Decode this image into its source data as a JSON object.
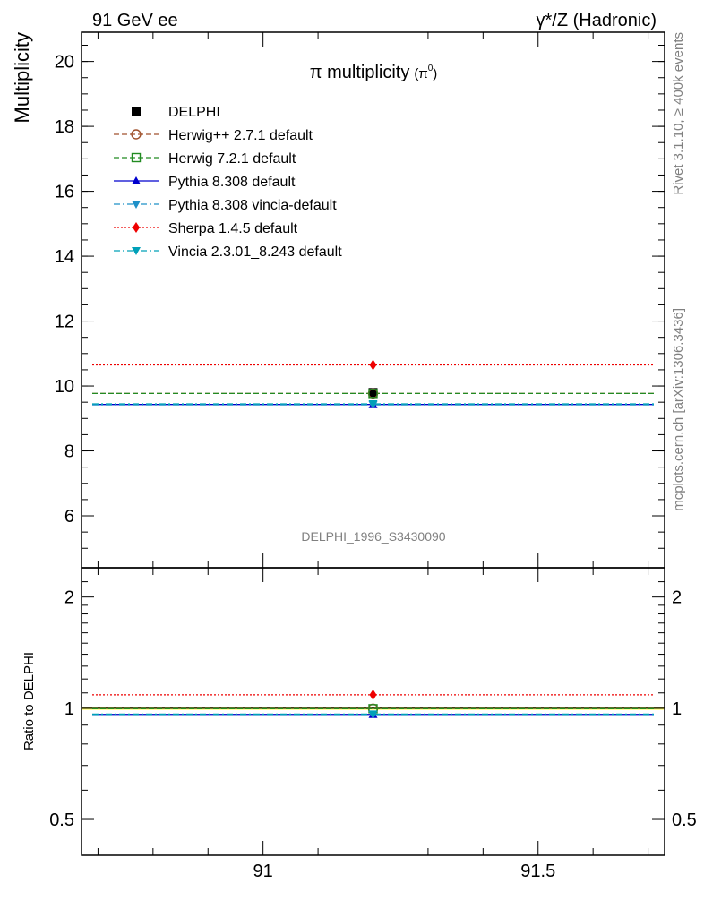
{
  "header": {
    "left": "91 GeV ee",
    "right": "γ*/Z (Hadronic)"
  },
  "side_text": {
    "rivet": "Rivet 3.1.10, ≥ 400k events",
    "mcplots": "mcplots.cern.ch [arXiv:1306.3436]"
  },
  "chart_data": [
    {
      "type": "scatter",
      "title": "π multiplicity (π⁰)",
      "title_main": "π multiplicity",
      "title_sub": "(π",
      "title_sup": "0",
      "title_close": ")",
      "ylabel": "Multiplicity",
      "watermark": "DELPHI_1996_S3430090",
      "xlim": [
        90.67,
        91.73
      ],
      "ylim": [
        4.4,
        20.9
      ],
      "yticks": [
        6,
        8,
        10,
        12,
        14,
        16,
        18,
        20
      ],
      "ytick_labels": [
        "6",
        "8",
        "10",
        "12",
        "14",
        "16",
        "18",
        "20"
      ],
      "xticks": [
        91,
        91.5
      ],
      "legend_position": "top-left",
      "series": [
        {
          "name": "DELPHI",
          "x": [
            91.2
          ],
          "y": [
            9.8
          ],
          "yerr": [
            0.1
          ],
          "color": "#000000",
          "style": "data",
          "marker": "square-filled"
        },
        {
          "name": "Herwig++ 2.7.1 default",
          "x": [
            91.2
          ],
          "y": [
            9.77
          ],
          "color": "#a0522d",
          "style": "dashed",
          "marker": "circle-open"
        },
        {
          "name": "Herwig 7.2.1 default",
          "x": [
            91.2
          ],
          "y": [
            9.77
          ],
          "color": "#228b22",
          "style": "dashed",
          "marker": "square-open"
        },
        {
          "name": "Pythia 8.308 default",
          "x": [
            91.2
          ],
          "y": [
            9.43
          ],
          "color": "#0000cd",
          "style": "solid",
          "marker": "triangle-up"
        },
        {
          "name": "Pythia 8.308 vincia-default",
          "x": [
            91.2
          ],
          "y": [
            9.42
          ],
          "color": "#1e90c8",
          "style": "dashdot",
          "marker": "triangle-down"
        },
        {
          "name": "Sherpa 1.4.5 default",
          "x": [
            91.2
          ],
          "y": [
            10.65
          ],
          "color": "#ee0000",
          "style": "dotted",
          "marker": "diamond"
        },
        {
          "name": "Vincia 2.3.01_8.243 default",
          "x": [
            91.2
          ],
          "y": [
            9.45
          ],
          "color": "#00a0b8",
          "style": "dashdot",
          "marker": "triangle-down"
        }
      ]
    },
    {
      "type": "scatter",
      "ylabel": "Ratio to DELPHI",
      "xlim": [
        90.67,
        91.73
      ],
      "ylim": [
        0.4,
        2.4
      ],
      "yscale": "log",
      "yticks": [
        0.5,
        1,
        2
      ],
      "ytick_labels": [
        "0.5",
        "1",
        "2"
      ],
      "xticks": [
        91,
        91.5
      ],
      "xtick_labels": [
        "91",
        "91.5"
      ],
      "band": {
        "low": 0.99,
        "high": 1.01,
        "color": "#ffff66"
      },
      "series": [
        {
          "name": "Herwig++ 2.7.1 default",
          "x": [
            91.2
          ],
          "y": [
            0.997
          ],
          "color": "#a0522d",
          "style": "dashed",
          "marker": "circle-open"
        },
        {
          "name": "Herwig 7.2.1 default",
          "x": [
            91.2
          ],
          "y": [
            0.997
          ],
          "color": "#228b22",
          "style": "dashed",
          "marker": "square-open"
        },
        {
          "name": "Pythia 8.308 default",
          "x": [
            91.2
          ],
          "y": [
            0.962
          ],
          "color": "#0000cd",
          "style": "solid",
          "marker": "triangle-up"
        },
        {
          "name": "Pythia 8.308 vincia-default",
          "x": [
            91.2
          ],
          "y": [
            0.961
          ],
          "color": "#1e90c8",
          "style": "dashdot",
          "marker": "triangle-down"
        },
        {
          "name": "Sherpa 1.4.5 default",
          "x": [
            91.2
          ],
          "y": [
            1.087
          ],
          "color": "#ee0000",
          "style": "dotted",
          "marker": "diamond"
        },
        {
          "name": "Vincia 2.3.01_8.243 default",
          "x": [
            91.2
          ],
          "y": [
            0.964
          ],
          "color": "#00a0b8",
          "style": "dashdot",
          "marker": "triangle-down"
        }
      ]
    }
  ]
}
